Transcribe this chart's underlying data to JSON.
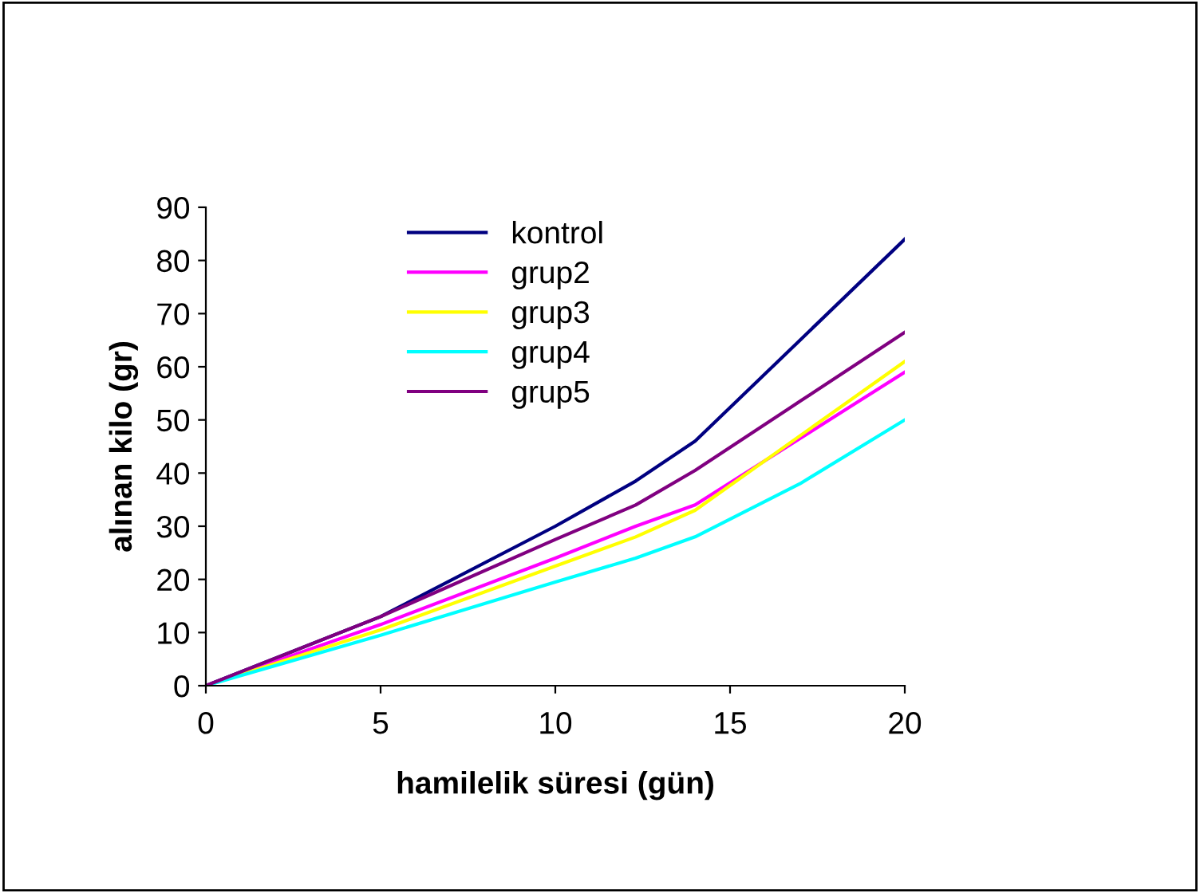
{
  "chart_data": {
    "type": "line",
    "xlabel": "hamilelik süresi (gün)",
    "ylabel": "alınan kilo (gr)",
    "x": [
      0,
      5,
      10,
      12.3,
      14,
      17,
      20
    ],
    "series": [
      {
        "name": "kontrol",
        "color": "#000080",
        "values": [
          0,
          13,
          30,
          38.5,
          46,
          65,
          84
        ]
      },
      {
        "name": "grup2",
        "color": "#ff00ff",
        "values": [
          0,
          11.5,
          24,
          30,
          34,
          46.5,
          59
        ]
      },
      {
        "name": "grup3",
        "color": "#ffff00",
        "values": [
          0,
          10.5,
          22.5,
          28,
          33,
          47,
          61
        ]
      },
      {
        "name": "grup4",
        "color": "#00ffff",
        "values": [
          0,
          9.5,
          19.5,
          24,
          28,
          38,
          50
        ]
      },
      {
        "name": "grup5",
        "color": "#800080",
        "values": [
          0,
          13,
          27.5,
          34,
          40.5,
          53.5,
          66.5
        ]
      }
    ],
    "xlim": [
      0,
      20
    ],
    "xticks": [
      0,
      5,
      10,
      15,
      20
    ],
    "ylim": [
      0,
      90
    ],
    "yticks": [
      0,
      10,
      20,
      30,
      40,
      50,
      60,
      70,
      80,
      90
    ],
    "grid": false,
    "legend": "top left",
    "marker": "none",
    "line_style": "solid"
  }
}
